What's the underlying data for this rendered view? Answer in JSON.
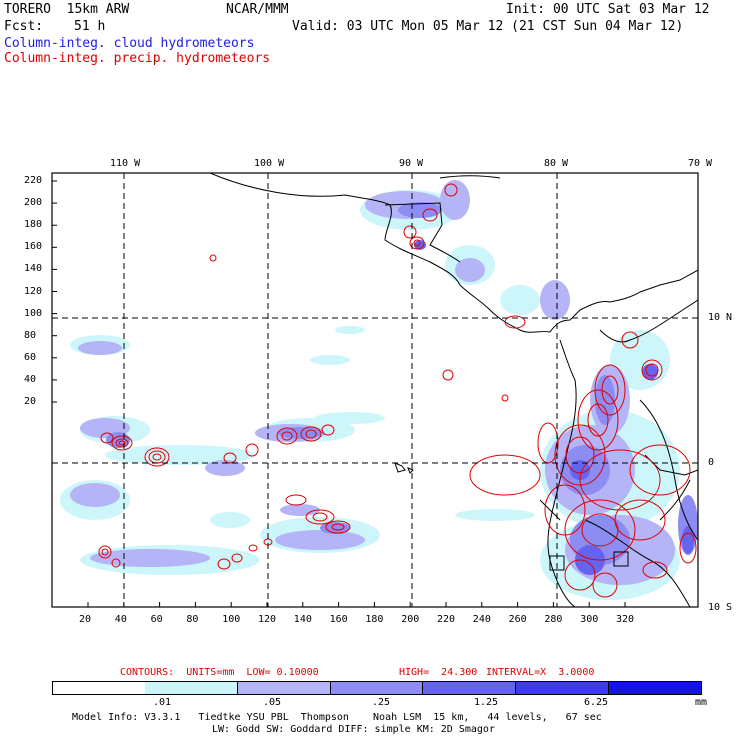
{
  "header": {
    "model": "TORERO  15km ARW",
    "org": "NCAR/MMM",
    "init": "Init: 00 UTC Sat 03 Mar 12",
    "fcst_label": "Fcst:",
    "fcst_value": "51 h",
    "valid": "Valid: 03 UTC Mon 05 Mar 12 (21 CST Sun 04 Mar 12)",
    "field1": "Column-integ. cloud hydrometeors",
    "field2": "Column-integ. precip. hydrometeors"
  },
  "colors": {
    "cloud_label": "#2020e0",
    "precip_label": "#e00000",
    "contour": "#e00000"
  },
  "map": {
    "lon_labels": [
      "110 W",
      "100 W",
      "90 W",
      "80 W",
      "70 W"
    ],
    "lat_labels": [
      "10 N",
      "0",
      "10 S"
    ],
    "y_ticks": [
      "220",
      "200",
      "180",
      "160",
      "140",
      "120",
      "100",
      "80",
      "60",
      "40",
      "20"
    ],
    "x_ticks": [
      "20",
      "40",
      "60",
      "80",
      "100",
      "120",
      "140",
      "160",
      "180",
      "200",
      "220",
      "240",
      "260",
      "280",
      "300",
      "320"
    ],
    "grid_y_values": [
      2,
      220,
      2,
      320
    ],
    "contour_units": "CONTOURS:  UNITS=mm  LOW= 0.10000",
    "contour_high": "HIGH=  24.300",
    "contour_interval": "INTERVAL=X  3.0000"
  },
  "colorbar": {
    "ticks": [
      ".01",
      ".05",
      ".25",
      "1.25",
      "6.25"
    ],
    "unit": "mm",
    "colors": [
      "#ffffff",
      "#ccf6fa",
      "#b4b4f6",
      "#8c8cf2",
      "#6464ee",
      "#3c3cea",
      "#1414e6"
    ]
  },
  "footer": {
    "line1": "Model Info: V3.3.1   Tiedtke YSU PBL  Thompson    Noah LSM  15 km,   44 levels,   67 sec",
    "line2": "LW: Godd SW: Goddard DIFF: simple KM: 2D Smagor"
  }
}
